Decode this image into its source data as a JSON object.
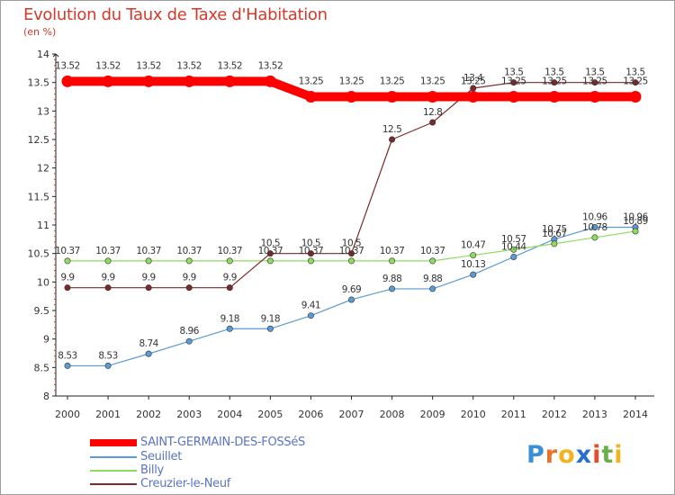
{
  "header": {
    "title": "Evolution du Taux de Taxe d'Habitation",
    "subtitle": "(en %)"
  },
  "logo": {
    "text": "Proxiti",
    "letters": [
      "P",
      "r",
      "o",
      "x",
      "i",
      "t",
      "i"
    ],
    "colors": [
      "#3b8fd6",
      "#e8732a",
      "#f2b41c",
      "#2a6fd0",
      "#e84a2a",
      "#6ab04a",
      "#f2b41c"
    ]
  },
  "chart_data": {
    "type": "line",
    "title": "Evolution du Taux de Taxe d'Habitation",
    "subtitle": "(en %)",
    "x": [
      "2000",
      "2001",
      "2002",
      "2003",
      "2004",
      "2005",
      "2006",
      "2007",
      "2008",
      "2009",
      "2010",
      "2011",
      "2012",
      "2013",
      "2014"
    ],
    "y_ticks": [
      "8",
      "8.5",
      "9",
      "9.5",
      "10",
      "10.5",
      "11",
      "11.5",
      "12",
      "12.5",
      "13",
      "13.5",
      "14"
    ],
    "ylim": [
      8,
      14
    ],
    "grid": false,
    "legend_position": "bottom-left",
    "series": [
      {
        "name": "SAINT-GERMAIN-DES-FOSSéS",
        "color": "#ff0000",
        "values": [
          13.52,
          13.52,
          13.52,
          13.52,
          13.52,
          13.52,
          13.25,
          13.25,
          13.25,
          13.25,
          13.25,
          13.25,
          13.25,
          13.25,
          13.25
        ],
        "labels": [
          "13.52",
          "13.52",
          "13.52",
          "13.52",
          "13.52",
          "13.52",
          "13.25",
          "13.25",
          "13.25",
          "13.25",
          "13.25",
          "13.25",
          "13.25",
          "13.25",
          "13.25"
        ]
      },
      {
        "name": "Seuillet",
        "color": "#5b9bd5",
        "values": [
          8.53,
          8.53,
          8.74,
          8.96,
          9.18,
          9.18,
          9.41,
          9.69,
          9.88,
          9.88,
          10.13,
          10.44,
          10.75,
          10.96,
          10.96
        ],
        "labels": [
          "8.53",
          "8.53",
          "8.74",
          "8.96",
          "9.18",
          "9.18",
          "9.41",
          "9.69",
          "9.88",
          "9.88",
          "10.13",
          "10.44",
          "10.75",
          "10.96",
          "10.96"
        ]
      },
      {
        "name": "Billy",
        "color": "#8fdb5f",
        "values": [
          10.37,
          10.37,
          10.37,
          10.37,
          10.37,
          10.37,
          10.37,
          10.37,
          10.37,
          10.37,
          10.47,
          10.57,
          10.67,
          10.78,
          10.89
        ],
        "labels": [
          "10.37",
          "10.37",
          "10.37",
          "10.37",
          "10.37",
          "10.37",
          "10.37",
          "10.37",
          "10.37",
          "10.37",
          "10.47",
          "10.57",
          "10.67",
          "10.78",
          "10.89"
        ]
      },
      {
        "name": "Creuzier-le-Neuf",
        "color": "#7b2a2a",
        "values": [
          9.9,
          9.9,
          9.9,
          9.9,
          9.9,
          10.5,
          10.5,
          10.5,
          12.5,
          12.8,
          13.4,
          13.5,
          13.5,
          13.5,
          13.5
        ],
        "labels": [
          "9.9",
          "9.9",
          "9.9",
          "9.9",
          "9.9",
          "10.5",
          "10.5",
          "10.5",
          "12.5",
          "12.8",
          "13.4",
          "13.5",
          "13.5",
          "13.5",
          "13.5"
        ]
      }
    ]
  }
}
